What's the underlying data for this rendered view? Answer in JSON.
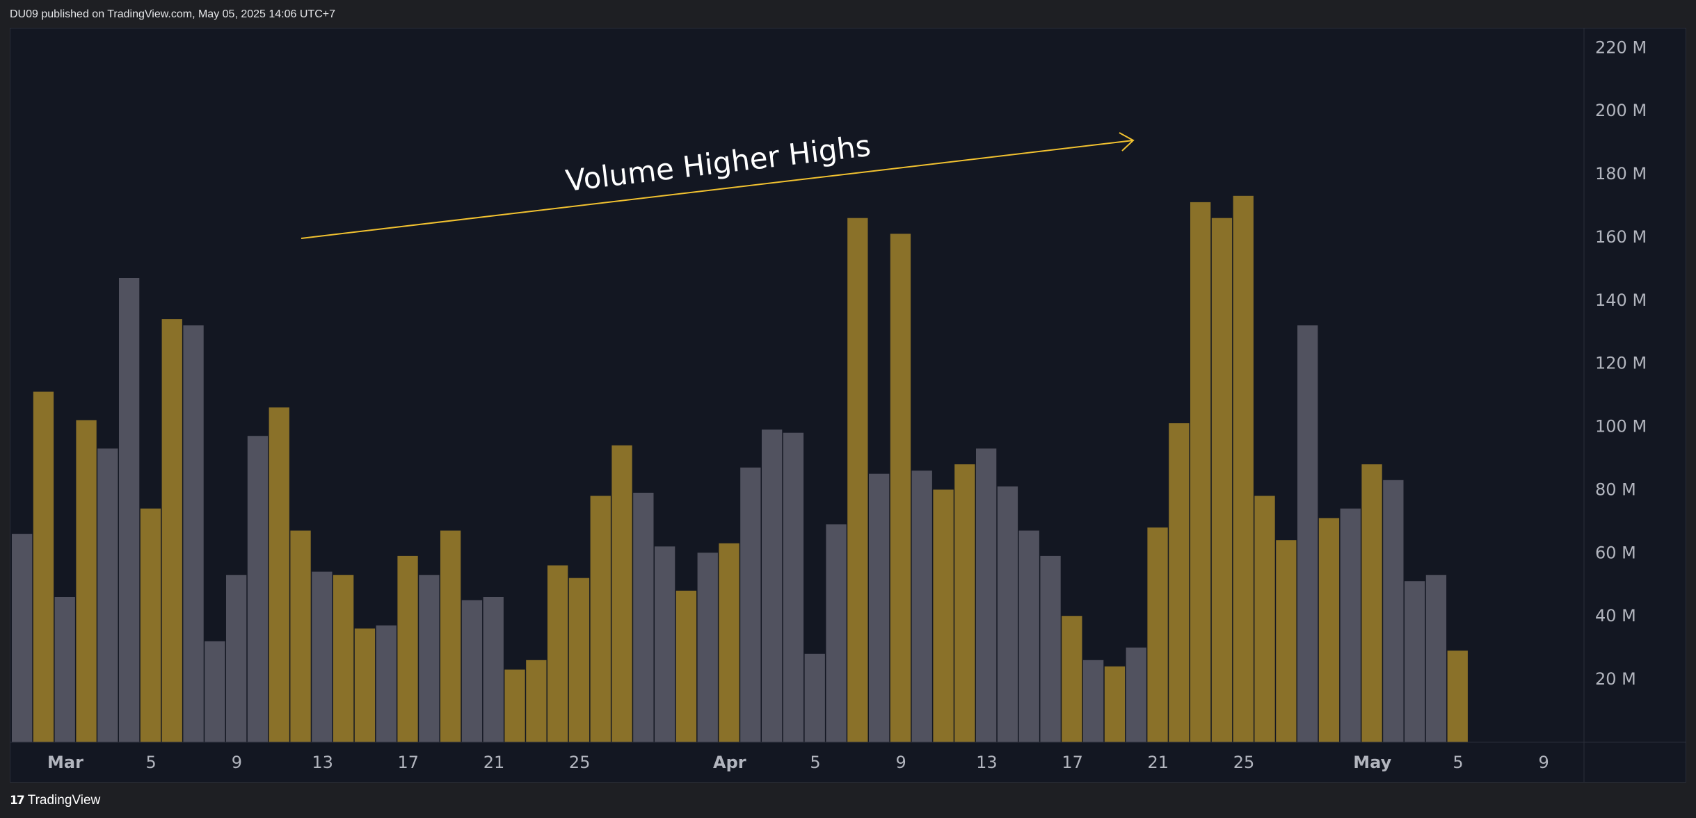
{
  "header": {
    "published_text": "DU09 published on TradingView.com, May 05, 2025 14:06 UTC+7"
  },
  "footer": {
    "logo_mark": "17",
    "logo_text": "TradingView"
  },
  "colors": {
    "background": "#131722",
    "up_bar": "#8a7129",
    "down_bar": "#51525f",
    "arrow": "#f2c230",
    "annotation_text": "#ffffff",
    "axis_text": "#b2b5be"
  },
  "chart_data": {
    "type": "bar",
    "title": "",
    "annotation": "Volume Higher Highs",
    "y_unit_suffix": "M",
    "ylim": [
      0,
      226
    ],
    "y_ticks": [
      20,
      40,
      60,
      80,
      100,
      120,
      140,
      160,
      180,
      200,
      220
    ],
    "y_tick_labels": [
      "20 M",
      "40 M",
      "60 M",
      "80 M",
      "100 M",
      "120 M",
      "140 M",
      "160 M",
      "180 M",
      "200 M",
      "220 M"
    ],
    "x_tick_labels": [
      {
        "label": "Mar",
        "bar": 2.5,
        "bold": true
      },
      {
        "label": "5",
        "bar": 6.5,
        "bold": false
      },
      {
        "label": "9",
        "bar": 10.5,
        "bold": false
      },
      {
        "label": "13",
        "bar": 14.5,
        "bold": false
      },
      {
        "label": "17",
        "bar": 18.5,
        "bold": false
      },
      {
        "label": "21",
        "bar": 22.5,
        "bold": false
      },
      {
        "label": "25",
        "bar": 26.5,
        "bold": false
      },
      {
        "label": "Apr",
        "bar": 33.5,
        "bold": true
      },
      {
        "label": "5",
        "bar": 37.5,
        "bold": false
      },
      {
        "label": "9",
        "bar": 41.5,
        "bold": false
      },
      {
        "label": "13",
        "bar": 45.5,
        "bold": false
      },
      {
        "label": "17",
        "bar": 49.5,
        "bold": false
      },
      {
        "label": "21",
        "bar": 53.5,
        "bold": false
      },
      {
        "label": "25",
        "bar": 57.5,
        "bold": false
      },
      {
        "label": "May",
        "bar": 63.5,
        "bold": true
      },
      {
        "label": "5",
        "bar": 67.5,
        "bold": false
      },
      {
        "label": "9",
        "bar": 71.5,
        "bold": false
      }
    ],
    "bar_count_capacity": 74,
    "grid": false,
    "bars": [
      {
        "value": 66,
        "dir": "down"
      },
      {
        "value": 111,
        "dir": "up"
      },
      {
        "value": 46,
        "dir": "down"
      },
      {
        "value": 102,
        "dir": "up"
      },
      {
        "value": 93,
        "dir": "down"
      },
      {
        "value": 147,
        "dir": "down"
      },
      {
        "value": 74,
        "dir": "up"
      },
      {
        "value": 134,
        "dir": "up"
      },
      {
        "value": 132,
        "dir": "down"
      },
      {
        "value": 32,
        "dir": "down"
      },
      {
        "value": 53,
        "dir": "down"
      },
      {
        "value": 97,
        "dir": "down"
      },
      {
        "value": 106,
        "dir": "up"
      },
      {
        "value": 67,
        "dir": "up"
      },
      {
        "value": 54,
        "dir": "down"
      },
      {
        "value": 53,
        "dir": "up"
      },
      {
        "value": 36,
        "dir": "up"
      },
      {
        "value": 37,
        "dir": "down"
      },
      {
        "value": 59,
        "dir": "up"
      },
      {
        "value": 53,
        "dir": "down"
      },
      {
        "value": 67,
        "dir": "up"
      },
      {
        "value": 45,
        "dir": "down"
      },
      {
        "value": 46,
        "dir": "down"
      },
      {
        "value": 23,
        "dir": "up"
      },
      {
        "value": 26,
        "dir": "up"
      },
      {
        "value": 56,
        "dir": "up"
      },
      {
        "value": 52,
        "dir": "up"
      },
      {
        "value": 78,
        "dir": "up"
      },
      {
        "value": 94,
        "dir": "up"
      },
      {
        "value": 79,
        "dir": "down"
      },
      {
        "value": 62,
        "dir": "down"
      },
      {
        "value": 48,
        "dir": "up"
      },
      {
        "value": 60,
        "dir": "down"
      },
      {
        "value": 63,
        "dir": "up"
      },
      {
        "value": 87,
        "dir": "down"
      },
      {
        "value": 99,
        "dir": "down"
      },
      {
        "value": 98,
        "dir": "down"
      },
      {
        "value": 28,
        "dir": "down"
      },
      {
        "value": 69,
        "dir": "down"
      },
      {
        "value": 166,
        "dir": "up"
      },
      {
        "value": 85,
        "dir": "down"
      },
      {
        "value": 161,
        "dir": "up"
      },
      {
        "value": 86,
        "dir": "down"
      },
      {
        "value": 80,
        "dir": "up"
      },
      {
        "value": 88,
        "dir": "up"
      },
      {
        "value": 93,
        "dir": "down"
      },
      {
        "value": 81,
        "dir": "down"
      },
      {
        "value": 67,
        "dir": "down"
      },
      {
        "value": 59,
        "dir": "down"
      },
      {
        "value": 40,
        "dir": "up"
      },
      {
        "value": 26,
        "dir": "down"
      },
      {
        "value": 24,
        "dir": "up"
      },
      {
        "value": 30,
        "dir": "down"
      },
      {
        "value": 68,
        "dir": "up"
      },
      {
        "value": 101,
        "dir": "up"
      },
      {
        "value": 171,
        "dir": "up"
      },
      {
        "value": 166,
        "dir": "up"
      },
      {
        "value": 173,
        "dir": "up"
      },
      {
        "value": 78,
        "dir": "up"
      },
      {
        "value": 64,
        "dir": "up"
      },
      {
        "value": 132,
        "dir": "down"
      },
      {
        "value": 71,
        "dir": "up"
      },
      {
        "value": 74,
        "dir": "down"
      },
      {
        "value": 88,
        "dir": "up"
      },
      {
        "value": 83,
        "dir": "down"
      },
      {
        "value": 51,
        "dir": "down"
      },
      {
        "value": 53,
        "dir": "down"
      },
      {
        "value": 29,
        "dir": "up"
      }
    ]
  }
}
